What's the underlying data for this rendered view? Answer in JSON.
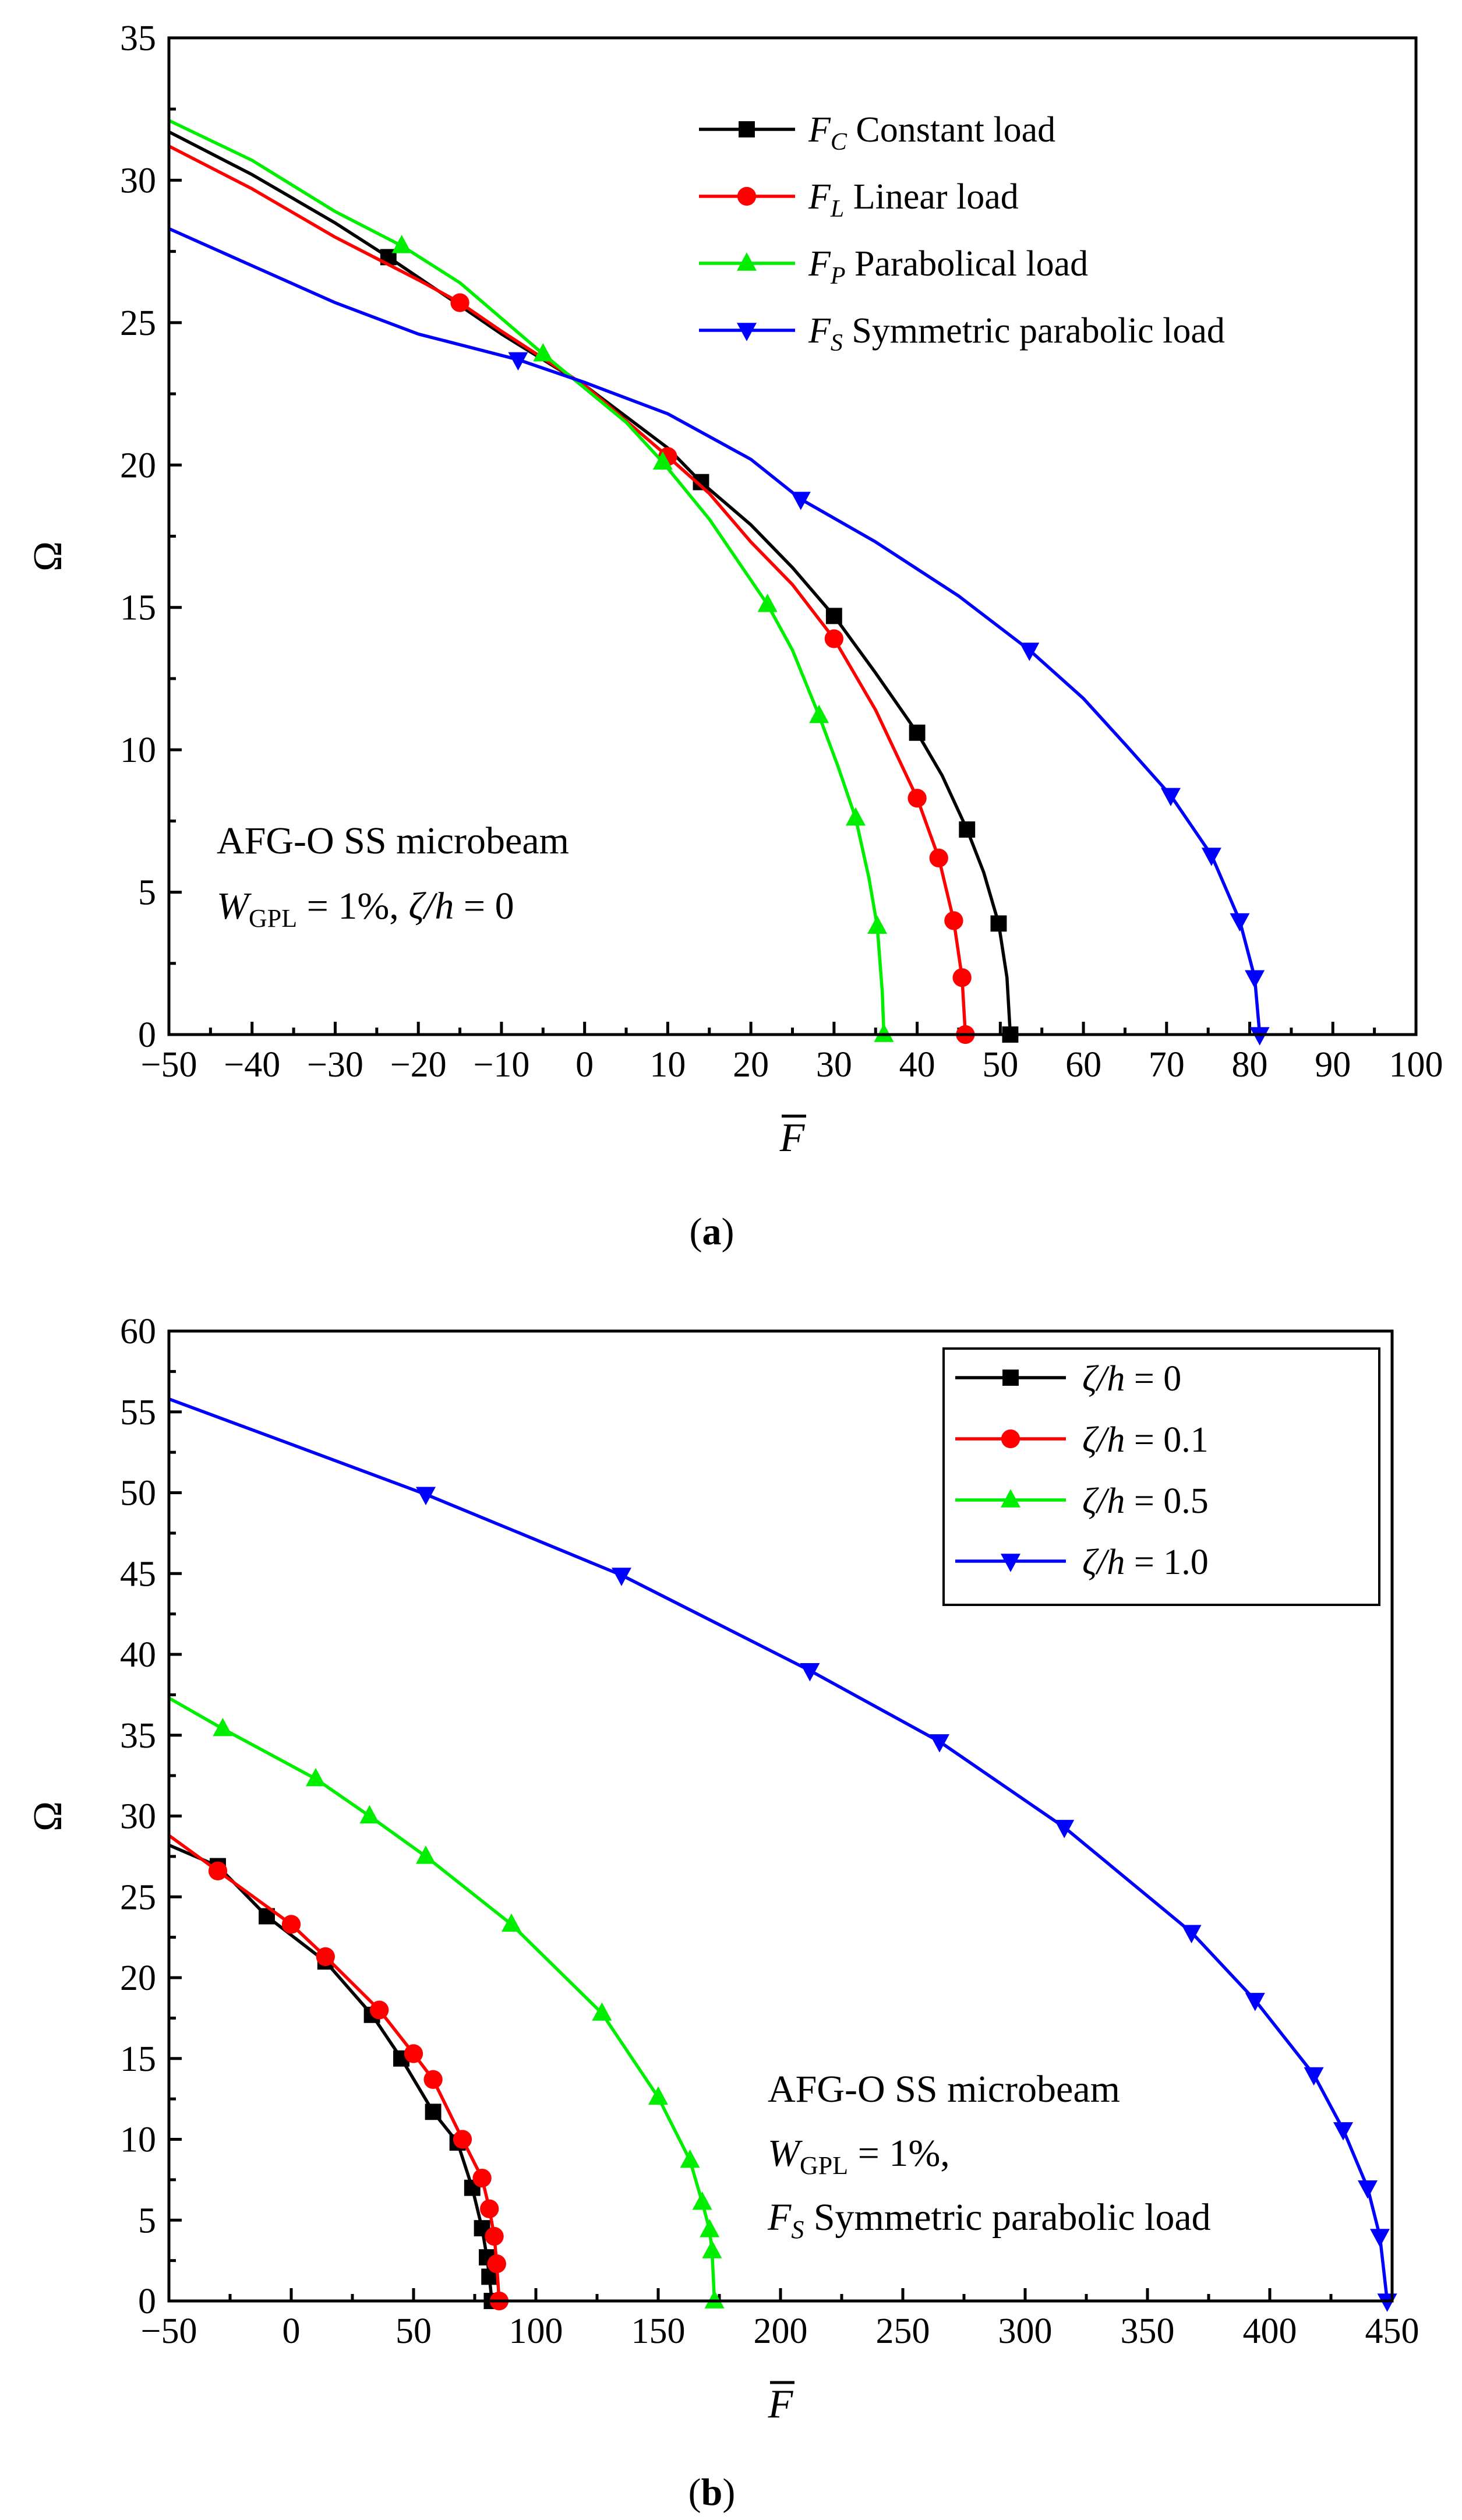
{
  "chart_data": [
    {
      "type": "line",
      "caption": "(a)",
      "caption_letter": "a",
      "xlabel": "F",
      "ylabel": "Ω",
      "xlim": [
        -50,
        100
      ],
      "ylim": [
        0,
        35
      ],
      "xticks": [
        -50,
        -40,
        -30,
        -20,
        -10,
        0,
        10,
        20,
        30,
        40,
        50,
        60,
        70,
        80,
        90,
        100
      ],
      "yticks": [
        0,
        5,
        10,
        15,
        20,
        25,
        30,
        35
      ],
      "xtick_labels": [
        "−50",
        "−40",
        "−30",
        "−20",
        "−10",
        "0",
        "10",
        "20",
        "30",
        "40",
        "50",
        "60",
        "70",
        "80",
        "90",
        "100"
      ],
      "ytick_labels": [
        "0",
        "5",
        "10",
        "15",
        "20",
        "25",
        "30",
        "35"
      ],
      "legend_position": "top-right",
      "annotation": {
        "line1": "AFG-O SS microbeam",
        "w_symbol": "W",
        "w_sub": "GPL",
        "w_value": " = 1%, ",
        "zeta": "ζ/h",
        "zeta_value": " = 0"
      },
      "series": [
        {
          "name": "F_C Constant load",
          "symbol": "F",
          "sub": "C",
          "label": "Constant load",
          "color": "#000000",
          "marker": "square",
          "points": [
            [
              -50,
              31.7
            ],
            [
              -40,
              30.2
            ],
            [
              -30,
              28.5
            ],
            [
              -23.6,
              27.3
            ],
            [
              -15,
              25.6
            ],
            [
              -10,
              24.6
            ],
            [
              0,
              22.8
            ],
            [
              10,
              20.6
            ],
            [
              14,
              19.4
            ],
            [
              20,
              17.9
            ],
            [
              25,
              16.4
            ],
            [
              30,
              14.7
            ],
            [
              35,
              12.7
            ],
            [
              40,
              10.6
            ],
            [
              43,
              9.1
            ],
            [
              46,
              7.2
            ],
            [
              48,
              5.7
            ],
            [
              49.8,
              3.9
            ],
            [
              50.8,
              2.0
            ],
            [
              51.2,
              0
            ]
          ],
          "markers": [
            [
              -23.6,
              27.3
            ],
            [
              14,
              19.4
            ],
            [
              30,
              14.7
            ],
            [
              40,
              10.6
            ],
            [
              46,
              7.2
            ],
            [
              49.8,
              3.9
            ],
            [
              51.2,
              0
            ]
          ]
        },
        {
          "name": "F_L Linear load",
          "symbol": "F",
          "sub": "L",
          "label": "Linear load",
          "color": "#ff0000",
          "marker": "circle",
          "points": [
            [
              -50,
              31.2
            ],
            [
              -40,
              29.7
            ],
            [
              -30,
              28.0
            ],
            [
              -20,
              26.5
            ],
            [
              -15,
              25.7
            ],
            [
              -10,
              24.7
            ],
            [
              0,
              22.8
            ],
            [
              10,
              20.3
            ],
            [
              15,
              19.0
            ],
            [
              20,
              17.3
            ],
            [
              25,
              15.8
            ],
            [
              30,
              13.9
            ],
            [
              35,
              11.4
            ],
            [
              40,
              8.3
            ],
            [
              42.6,
              6.2
            ],
            [
              44.4,
              4.0
            ],
            [
              45.4,
              2.0
            ],
            [
              45.8,
              0
            ]
          ],
          "markers": [
            [
              -15,
              25.7
            ],
            [
              10,
              20.3
            ],
            [
              30,
              13.9
            ],
            [
              40,
              8.3
            ],
            [
              42.6,
              6.2
            ],
            [
              44.4,
              4.0
            ],
            [
              45.4,
              2.0
            ],
            [
              45.8,
              0
            ]
          ]
        },
        {
          "name": "F_P Parabolical load",
          "symbol": "F",
          "sub": "P",
          "label": "Parabolical load",
          "color": "#00ee00",
          "marker": "triangle-up",
          "points": [
            [
              -50,
              32.1
            ],
            [
              -40,
              30.7
            ],
            [
              -30,
              28.9
            ],
            [
              -22,
              27.7
            ],
            [
              -15,
              26.4
            ],
            [
              -5,
              23.9
            ],
            [
              0,
              22.7
            ],
            [
              5,
              21.5
            ],
            [
              9.4,
              20.1
            ],
            [
              15,
              18.1
            ],
            [
              22,
              15.1
            ],
            [
              25,
              13.5
            ],
            [
              28.2,
              11.2
            ],
            [
              30.5,
              9.4
            ],
            [
              32.6,
              7.6
            ],
            [
              34.2,
              5.5
            ],
            [
              35.2,
              3.8
            ],
            [
              35.8,
              1.5
            ],
            [
              36,
              0
            ]
          ],
          "markers": [
            [
              -22,
              27.7
            ],
            [
              -5,
              23.9
            ],
            [
              9.4,
              20.1
            ],
            [
              22,
              15.1
            ],
            [
              28.2,
              11.2
            ],
            [
              32.6,
              7.6
            ],
            [
              35.2,
              3.8
            ],
            [
              36,
              0
            ]
          ]
        },
        {
          "name": "F_S Symmetric parabolic load",
          "symbol": "F",
          "sub": "S",
          "label": "Symmetric parabolic load",
          "color": "#0000ff",
          "marker": "triangle-down",
          "points": [
            [
              -50,
              28.3
            ],
            [
              -40,
              27.0
            ],
            [
              -30,
              25.7
            ],
            [
              -20,
              24.6
            ],
            [
              -8,
              23.7
            ],
            [
              0,
              22.9
            ],
            [
              10,
              21.8
            ],
            [
              20,
              20.2
            ],
            [
              26,
              18.8
            ],
            [
              35,
              17.3
            ],
            [
              45,
              15.4
            ],
            [
              53.5,
              13.5
            ],
            [
              60,
              11.8
            ],
            [
              65,
              10.2
            ],
            [
              70.5,
              8.4
            ],
            [
              75.4,
              6.3
            ],
            [
              78.8,
              4.0
            ],
            [
              80.6,
              2.0
            ],
            [
              81.2,
              0
            ]
          ],
          "markers": [
            [
              -8,
              23.7
            ],
            [
              26,
              18.8
            ],
            [
              53.5,
              13.5
            ],
            [
              70.5,
              8.4
            ],
            [
              75.4,
              6.3
            ],
            [
              78.8,
              4.0
            ],
            [
              80.6,
              2.0
            ],
            [
              81.2,
              0
            ]
          ]
        }
      ]
    },
    {
      "type": "line",
      "caption": "(b)",
      "caption_letter": "b",
      "xlabel": "F",
      "ylabel": "Ω",
      "xlim": [
        -50,
        450
      ],
      "ylim": [
        0,
        60
      ],
      "xticks": [
        -50,
        0,
        50,
        100,
        150,
        200,
        250,
        300,
        350,
        400,
        450
      ],
      "yticks": [
        0,
        5,
        10,
        15,
        20,
        25,
        30,
        35,
        40,
        45,
        50,
        55,
        60
      ],
      "xtick_labels": [
        "−50",
        "0",
        "50",
        "100",
        "150",
        "200",
        "250",
        "300",
        "350",
        "400",
        "450"
      ],
      "ytick_labels": [
        "0",
        "5",
        "10",
        "15",
        "20",
        "25",
        "30",
        "35",
        "40",
        "45",
        "50",
        "55",
        "60"
      ],
      "legend_position": "top-right",
      "annotation": {
        "line1": "AFG-O SS microbeam",
        "w_symbol": "W",
        "w_sub": "GPL",
        "w_value": " = 1%,",
        "f_symbol": "F",
        "f_sub": "S",
        "f_label": " Symmetric parabolic load"
      },
      "series": [
        {
          "name": "ζ/h = 0",
          "zeta": "ζ/h",
          "value": " = 0",
          "color": "#000000",
          "marker": "square",
          "points": [
            [
              -50,
              28.2
            ],
            [
              -30,
              26.9
            ],
            [
              -10,
              23.8
            ],
            [
              14,
              21.0
            ],
            [
              33,
              17.7
            ],
            [
              45,
              15.0
            ],
            [
              58,
              11.7
            ],
            [
              68,
              9.8
            ],
            [
              74,
              7.0
            ],
            [
              78,
              4.5
            ],
            [
              80,
              2.7
            ],
            [
              81,
              1.5
            ],
            [
              82,
              0
            ]
          ],
          "markers": [
            [
              -30,
              26.9
            ],
            [
              -10,
              23.8
            ],
            [
              14,
              21.0
            ],
            [
              33,
              17.7
            ],
            [
              45,
              15.0
            ],
            [
              58,
              11.7
            ],
            [
              68,
              9.8
            ],
            [
              74,
              7.0
            ],
            [
              78,
              4.5
            ],
            [
              80,
              2.7
            ],
            [
              81,
              1.5
            ],
            [
              82,
              0
            ]
          ]
        },
        {
          "name": "ζ/h = 0.1",
          "zeta": "ζ/h",
          "value": " = 0.1",
          "color": "#ff0000",
          "marker": "circle",
          "points": [
            [
              -50,
              28.8
            ],
            [
              -30,
              26.6
            ],
            [
              0,
              23.3
            ],
            [
              14,
              21.3
            ],
            [
              36,
              18.0
            ],
            [
              50,
              15.3
            ],
            [
              58,
              13.7
            ],
            [
              70,
              10.0
            ],
            [
              78,
              7.6
            ],
            [
              81,
              5.7
            ],
            [
              83,
              4.0
            ],
            [
              84,
              2.3
            ],
            [
              85,
              0
            ]
          ],
          "markers": [
            [
              -30,
              26.6
            ],
            [
              0,
              23.3
            ],
            [
              14,
              21.3
            ],
            [
              36,
              18.0
            ],
            [
              50,
              15.3
            ],
            [
              58,
              13.7
            ],
            [
              70,
              10.0
            ],
            [
              78,
              7.6
            ],
            [
              81,
              5.7
            ],
            [
              83,
              4.0
            ],
            [
              84,
              2.3
            ],
            [
              85,
              0
            ]
          ]
        },
        {
          "name": "ζ/h = 0.5",
          "zeta": "ζ/h",
          "value": " = 0.5",
          "color": "#00ee00",
          "marker": "triangle-up",
          "points": [
            [
              -50,
              37.3
            ],
            [
              -28,
              35.4
            ],
            [
              10,
              32.3
            ],
            [
              32,
              30.0
            ],
            [
              55,
              27.5
            ],
            [
              90,
              23.3
            ],
            [
              127,
              17.8
            ],
            [
              150,
              12.6
            ],
            [
              163,
              8.7
            ],
            [
              168,
              6.1
            ],
            [
              171,
              4.4
            ],
            [
              172,
              3.1
            ],
            [
              173,
              0
            ]
          ],
          "markers": [
            [
              -28,
              35.4
            ],
            [
              10,
              32.3
            ],
            [
              32,
              30.0
            ],
            [
              55,
              27.5
            ],
            [
              90,
              23.3
            ],
            [
              127,
              17.8
            ],
            [
              150,
              12.6
            ],
            [
              163,
              8.7
            ],
            [
              168,
              6.1
            ],
            [
              171,
              4.4
            ],
            [
              172,
              3.1
            ],
            [
              173,
              0
            ]
          ]
        },
        {
          "name": "ζ/h = 1.0",
          "zeta": "ζ/h",
          "value": " = 1.0",
          "color": "#0000ff",
          "marker": "triangle-down",
          "points": [
            [
              -50,
              55.8
            ],
            [
              0,
              53.0
            ],
            [
              55,
              49.9
            ],
            [
              135,
              44.9
            ],
            [
              212,
              39.0
            ],
            [
              265,
              34.6
            ],
            [
              316,
              29.3
            ],
            [
              368,
              22.8
            ],
            [
              394,
              18.6
            ],
            [
              418,
              14.0
            ],
            [
              430,
              10.6
            ],
            [
              440,
              7.0
            ],
            [
              445,
              4.0
            ],
            [
              448,
              0
            ]
          ],
          "markers": [
            [
              55,
              49.9
            ],
            [
              135,
              44.9
            ],
            [
              212,
              39.0
            ],
            [
              265,
              34.6
            ],
            [
              316,
              29.3
            ],
            [
              368,
              22.8
            ],
            [
              394,
              18.6
            ],
            [
              418,
              14.0
            ],
            [
              430,
              10.6
            ],
            [
              440,
              7.0
            ],
            [
              445,
              4.0
            ],
            [
              448,
              0
            ]
          ]
        }
      ]
    }
  ]
}
